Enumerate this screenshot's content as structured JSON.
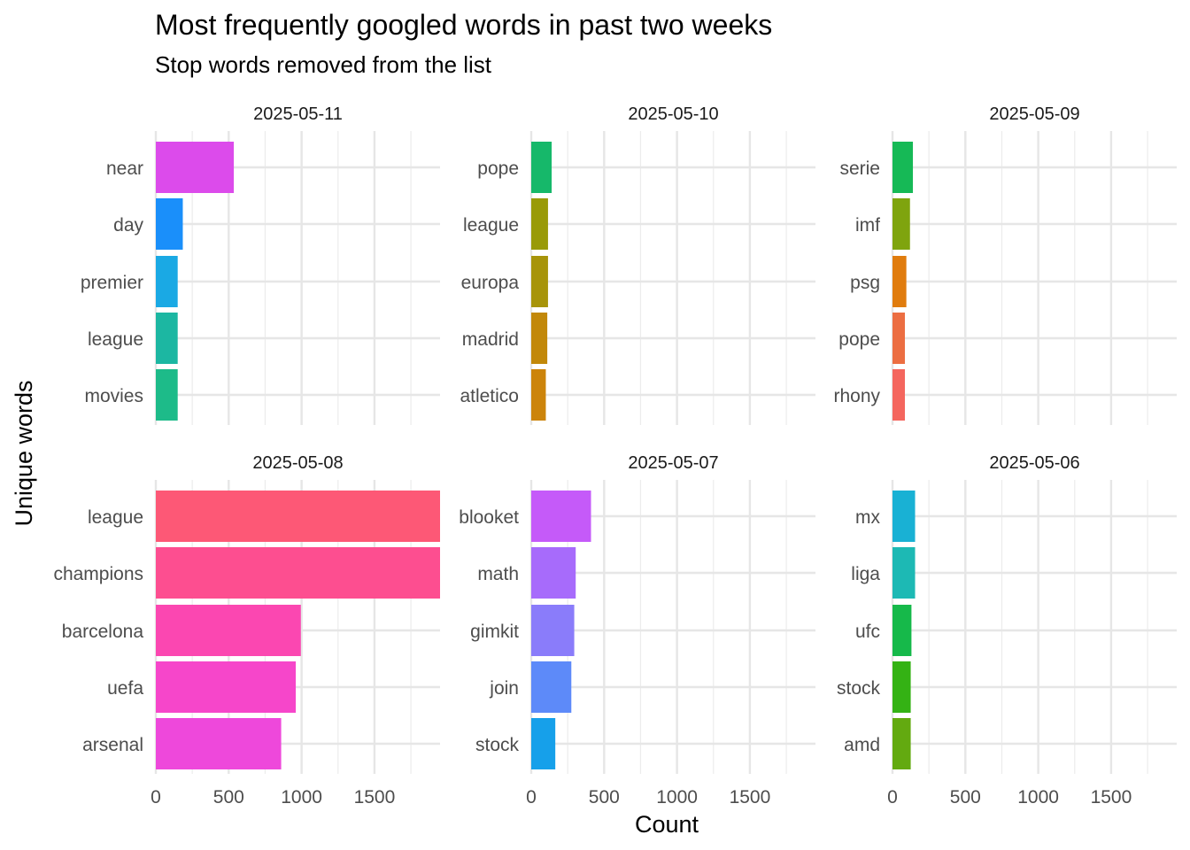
{
  "chart_data": {
    "type": "bar",
    "title": "Most frequently googled words in past two weeks",
    "subtitle": "Stop words removed from the list",
    "xlabel": "Count",
    "ylabel": "Unique words",
    "xlim": [
      0,
      1950
    ],
    "x_ticks": [
      "0",
      "500",
      "1000",
      "1500"
    ],
    "x_tick_values": [
      0,
      500,
      1000,
      1500
    ],
    "grid": true,
    "panels": [
      {
        "label": "2025-05-11",
        "bars": [
          {
            "word": "near",
            "value": 535,
            "color": "#DC4BEB"
          },
          {
            "word": "day",
            "value": 185,
            "color": "#1A8FFA"
          },
          {
            "word": "premier",
            "value": 150,
            "color": "#1AA9E4"
          },
          {
            "word": "league",
            "value": 150,
            "color": "#1CB7A2"
          },
          {
            "word": "movies",
            "value": 150,
            "color": "#1DBB89"
          }
        ]
      },
      {
        "label": "2025-05-10",
        "bars": [
          {
            "word": "pope",
            "value": 140,
            "color": "#16B86A"
          },
          {
            "word": "league",
            "value": 115,
            "color": "#999A08"
          },
          {
            "word": "europa",
            "value": 115,
            "color": "#A7940A"
          },
          {
            "word": "madrid",
            "value": 110,
            "color": "#C2880A"
          },
          {
            "word": "atletico",
            "value": 100,
            "color": "#CC840B"
          }
        ]
      },
      {
        "label": "2025-05-09",
        "bars": [
          {
            "word": "serie",
            "value": 140,
            "color": "#16B956"
          },
          {
            "word": "imf",
            "value": 120,
            "color": "#7FA40E"
          },
          {
            "word": "psg",
            "value": 95,
            "color": "#E07C0E"
          },
          {
            "word": "pope",
            "value": 85,
            "color": "#EC6E42"
          },
          {
            "word": "rhony",
            "value": 85,
            "color": "#F4665E"
          }
        ]
      },
      {
        "label": "2025-05-08",
        "bars": [
          {
            "word": "league",
            "value": 1950,
            "color": "#FD5876"
          },
          {
            "word": "champions",
            "value": 1950,
            "color": "#FD4E90"
          },
          {
            "word": "barcelona",
            "value": 995,
            "color": "#FB47B1"
          },
          {
            "word": "uefa",
            "value": 960,
            "color": "#F646CA"
          },
          {
            "word": "arsenal",
            "value": 860,
            "color": "#EE48DB"
          }
        ]
      },
      {
        "label": "2025-05-07",
        "bars": [
          {
            "word": "blooket",
            "value": 410,
            "color": "#C55AF9"
          },
          {
            "word": "math",
            "value": 305,
            "color": "#A76BFB"
          },
          {
            "word": "gimkit",
            "value": 295,
            "color": "#8A7CFA"
          },
          {
            "word": "join",
            "value": 275,
            "color": "#5D8AF9"
          },
          {
            "word": "stock",
            "value": 165,
            "color": "#16A0EA"
          }
        ]
      },
      {
        "label": "2025-05-06",
        "bars": [
          {
            "word": "mx",
            "value": 155,
            "color": "#19B1D4"
          },
          {
            "word": "liga",
            "value": 155,
            "color": "#1DB9B4"
          },
          {
            "word": "ufc",
            "value": 130,
            "color": "#16B94A"
          },
          {
            "word": "stock",
            "value": 125,
            "color": "#34B214"
          },
          {
            "word": "amd",
            "value": 125,
            "color": "#63AA10"
          }
        ]
      }
    ]
  }
}
